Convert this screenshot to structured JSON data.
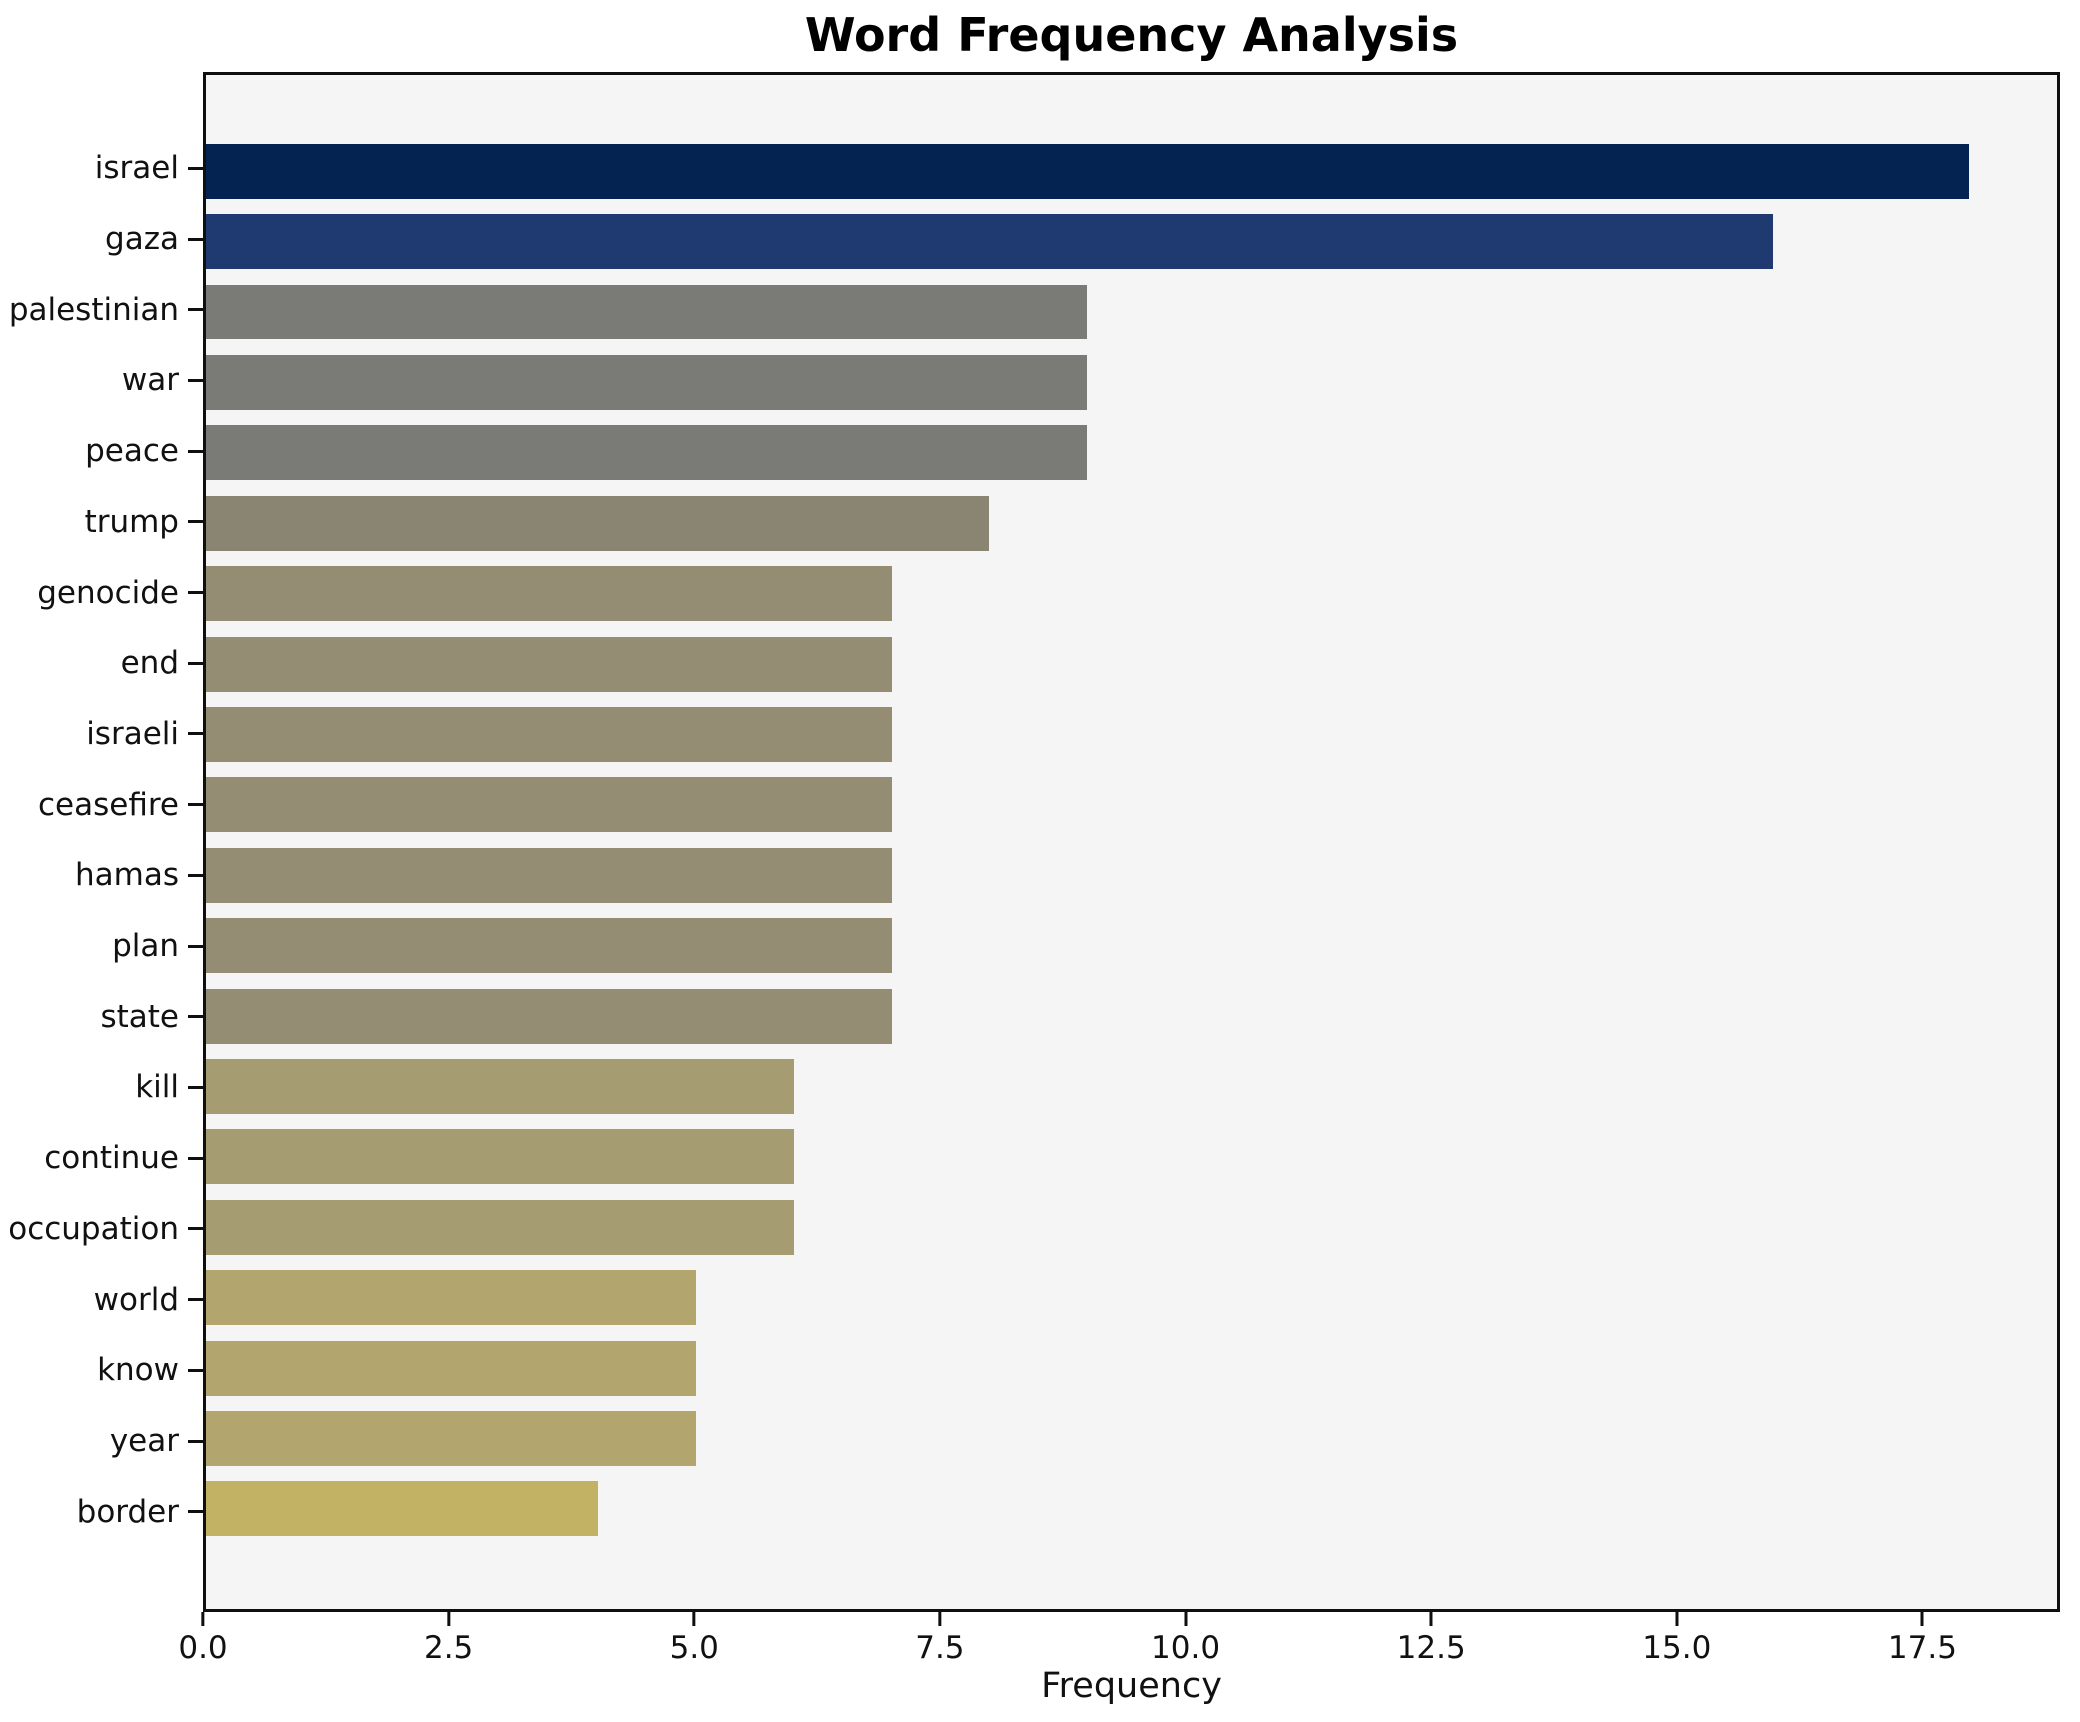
{
  "title": "Word Frequency Analysis",
  "xlabel": "Frequency",
  "colors": {
    "figure_background": "#ffffff",
    "plot_background": "#f5f5f6",
    "frame": "#0f0f0f",
    "text": "#111111"
  },
  "chart_data": {
    "type": "bar",
    "orientation": "horizontal",
    "title": "Word Frequency Analysis",
    "xlabel": "Frequency",
    "ylabel": "",
    "grid": false,
    "legend_position": "none",
    "xlim": [
      0,
      18.9
    ],
    "xticks": [
      "0.0",
      "2.5",
      "5.0",
      "7.5",
      "10.0",
      "12.5",
      "15.0",
      "17.5"
    ],
    "categories": [
      "israel",
      "gaza",
      "palestinian",
      "war",
      "peace",
      "trump",
      "genocide",
      "end",
      "israeli",
      "ceasefire",
      "hamas",
      "plan",
      "state",
      "kill",
      "continue",
      "occupation",
      "world",
      "know",
      "year",
      "border"
    ],
    "values": [
      18,
      16,
      9,
      9,
      9,
      8,
      7,
      7,
      7,
      7,
      7,
      7,
      7,
      6,
      6,
      6,
      5,
      5,
      5,
      4
    ],
    "bar_colors": [
      "#052351",
      "#1e3a70",
      "#7a7a77",
      "#7a7a77",
      "#7a7a77",
      "#8a8473",
      "#948d74",
      "#948d74",
      "#948d74",
      "#948d74",
      "#948d74",
      "#948d74",
      "#948d74",
      "#a69c72",
      "#a69c72",
      "#a69c72",
      "#b2a56e",
      "#b2a56e",
      "#b2a56e",
      "#c2b264"
    ]
  }
}
